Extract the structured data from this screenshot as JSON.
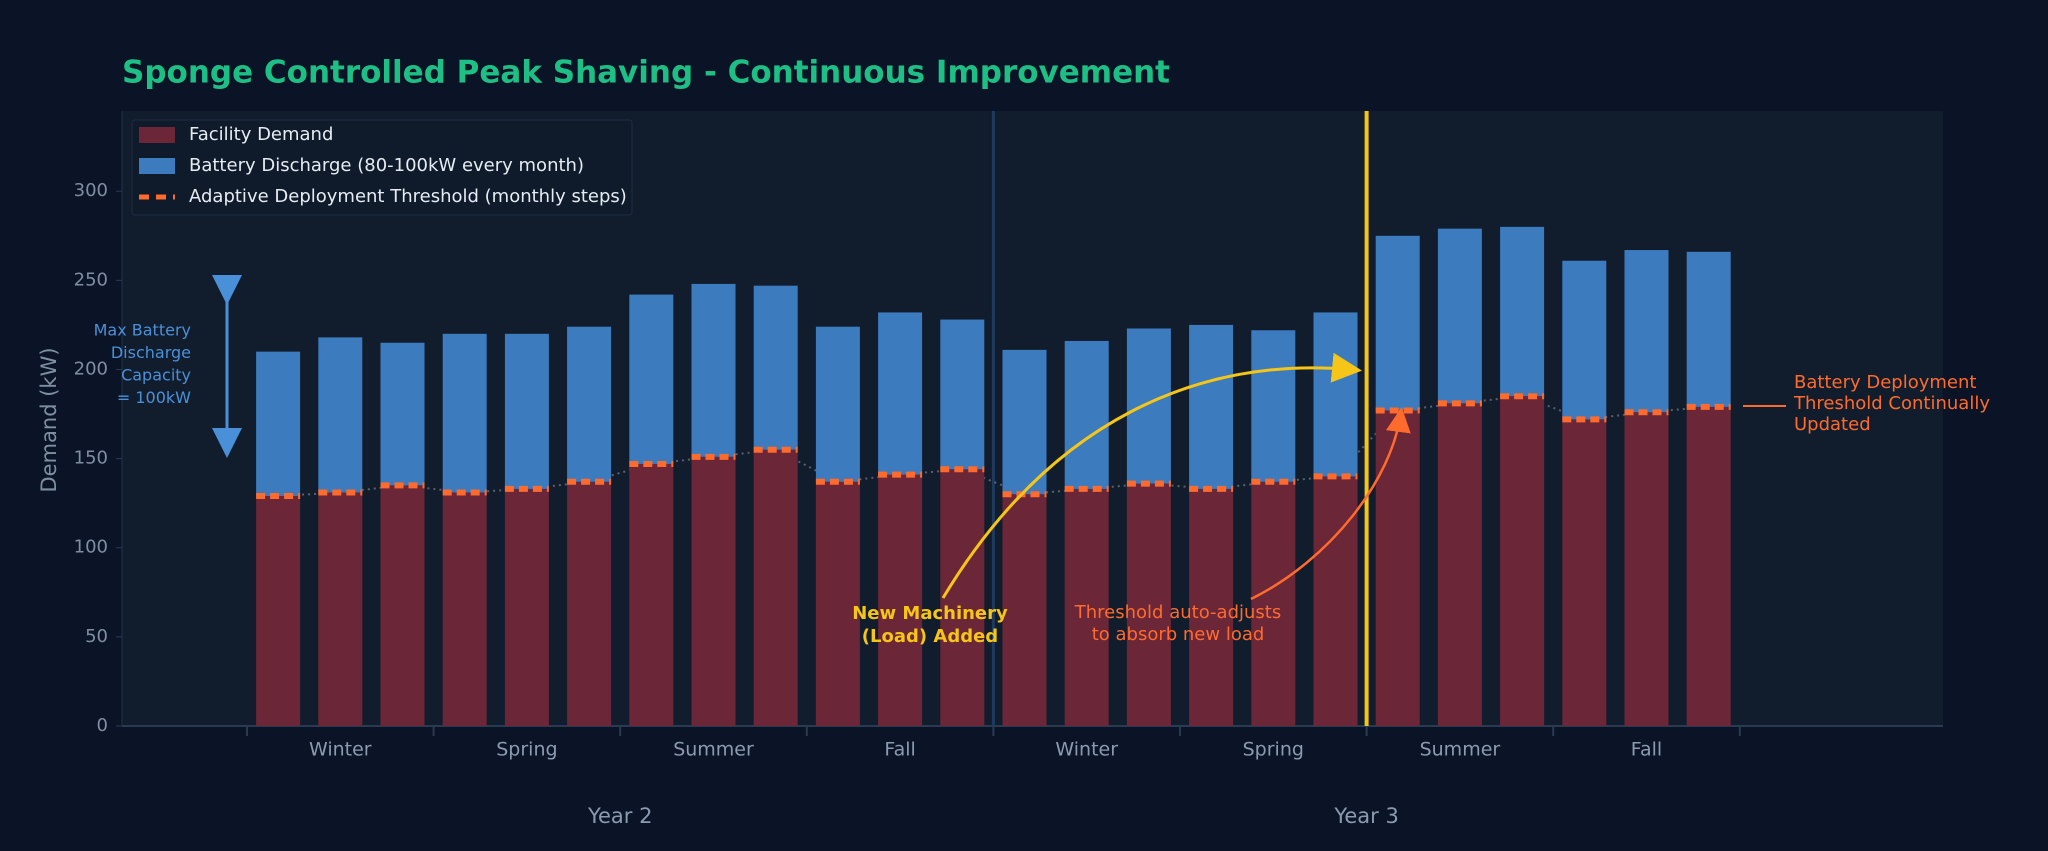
{
  "chart_data": {
    "type": "stacked-bar",
    "title": "Sponge Controlled Peak Shaving  -  Continuous Improvement",
    "y_label": "Demand (kW)",
    "categories": [
      null,
      null,
      null,
      null,
      null,
      null,
      null,
      null,
      null,
      null,
      null,
      null,
      null,
      null,
      null,
      null,
      null,
      null,
      null,
      null,
      null,
      null,
      null,
      null
    ],
    "season_groups": [
      "Winter",
      "Spring",
      "Summer",
      "Fall",
      "Winter",
      "Spring",
      "Summer",
      "Fall"
    ],
    "year_groups": [
      "Year 2",
      "Year 3"
    ],
    "series": [
      {
        "name": "Facility Demand",
        "color": "#6b2638",
        "values": [
          129,
          131,
          135,
          131,
          133,
          137,
          147,
          151,
          155,
          137,
          141,
          144,
          130,
          133,
          136,
          133,
          137,
          140,
          177,
          181,
          185,
          172,
          176,
          179
        ]
      },
      {
        "name": "Battery Discharge (80-100kW every month)",
        "color": "#3d7bbf",
        "values": [
          81,
          87,
          80,
          89,
          87,
          87,
          95,
          97,
          92,
          87,
          91,
          84,
          81,
          83,
          87,
          92,
          85,
          92,
          98,
          98,
          95,
          89,
          91,
          87
        ]
      },
      {
        "name": "Adaptive Deployment Threshold (monthly steps)",
        "color": "#ff6b2c",
        "type": "line",
        "values": [
          129,
          131,
          135,
          131,
          133,
          137,
          147,
          151,
          155,
          137,
          141,
          144,
          130,
          133,
          136,
          133,
          137,
          140,
          177,
          181,
          185,
          172,
          176,
          179
        ]
      }
    ],
    "ylim": [
      0,
      345
    ],
    "yticks": [
      0,
      50,
      100,
      150,
      200,
      250,
      300
    ],
    "grid": false,
    "legend": "upper-left",
    "annotations": {
      "machinery": [
        "New Machinery",
        "(Load) Added"
      ],
      "auto_adjust": [
        "Threshold auto-adjusts",
        "to absorb new load"
      ],
      "continual": [
        "Battery Deployment",
        "Threshold Continually",
        "Updated"
      ],
      "capacity": [
        "Max Battery",
        "Discharge",
        "Capacity",
        "= 100kW"
      ]
    }
  }
}
